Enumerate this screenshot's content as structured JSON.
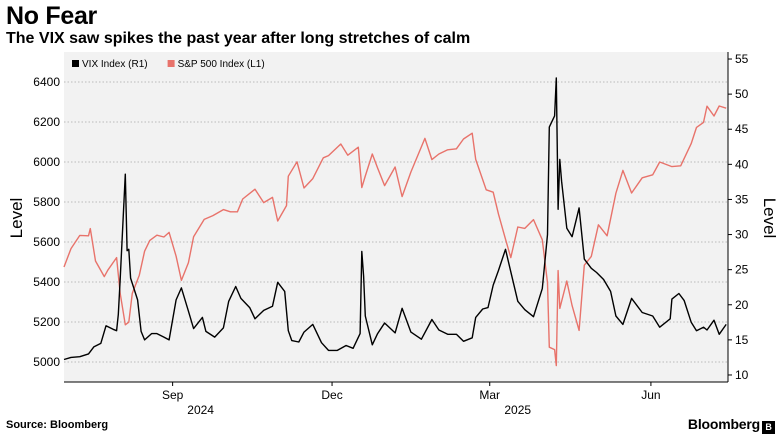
{
  "header": {
    "title": "No Fear",
    "subtitle": "The VIX saw spikes the past year after long stretches of calm"
  },
  "footer": {
    "source": "Source: Bloomberg",
    "brand": "Bloomberg"
  },
  "colors": {
    "vix": "#000000",
    "spx": "#e8736b",
    "grid": "#bbbbbb",
    "plot_bg": "#f2f2f2"
  },
  "chart_data": {
    "type": "line",
    "title": "No Fear",
    "subtitle": "The VIX saw spikes the past year after long stretches of calm",
    "left_axis": {
      "label": "Level",
      "range": [
        4900,
        6550
      ],
      "ticks": [
        5000,
        5200,
        5400,
        5600,
        5800,
        6000,
        6200,
        6400
      ]
    },
    "right_axis": {
      "label": "Level",
      "range": [
        9,
        56
      ],
      "ticks": [
        10,
        15,
        20,
        25,
        30,
        35,
        40,
        45,
        50,
        55
      ]
    },
    "x_axis": {
      "range": [
        "2024-07-01",
        "2025-07-15"
      ],
      "ticks": [
        {
          "date": "2024-09-01",
          "label": "Sep",
          "year": "2024"
        },
        {
          "date": "2024-12-01",
          "label": "Dec",
          "year": ""
        },
        {
          "date": "2025-03-01",
          "label": "Mar",
          "year": "2025"
        },
        {
          "date": "2025-06-01",
          "label": "Jun",
          "year": ""
        }
      ]
    },
    "grid": true,
    "legend_position": "top-left",
    "series": [
      {
        "name": "VIX Index (R1)",
        "axis": "right",
        "color": "#000000",
        "points": [
          [
            "2024-07-01",
            12.2
          ],
          [
            "2024-07-05",
            12.5
          ],
          [
            "2024-07-10",
            12.6
          ],
          [
            "2024-07-15",
            13.0
          ],
          [
            "2024-07-18",
            14.0
          ],
          [
            "2024-07-22",
            14.5
          ],
          [
            "2024-07-25",
            17.0
          ],
          [
            "2024-07-29",
            16.5
          ],
          [
            "2024-07-31",
            16.3
          ],
          [
            "2024-08-01",
            18.6
          ],
          [
            "2024-08-02",
            23.4
          ],
          [
            "2024-08-05",
            38.6
          ],
          [
            "2024-08-06",
            27.7
          ],
          [
            "2024-08-07",
            27.9
          ],
          [
            "2024-08-08",
            23.8
          ],
          [
            "2024-08-12",
            20.7
          ],
          [
            "2024-08-14",
            16.2
          ],
          [
            "2024-08-16",
            15.0
          ],
          [
            "2024-08-20",
            15.9
          ],
          [
            "2024-08-23",
            15.9
          ],
          [
            "2024-08-27",
            15.4
          ],
          [
            "2024-08-30",
            15.0
          ],
          [
            "2024-09-03",
            20.7
          ],
          [
            "2024-09-06",
            22.4
          ],
          [
            "2024-09-10",
            19.1
          ],
          [
            "2024-09-13",
            16.6
          ],
          [
            "2024-09-18",
            18.2
          ],
          [
            "2024-09-20",
            16.2
          ],
          [
            "2024-09-25",
            15.4
          ],
          [
            "2024-09-30",
            16.7
          ],
          [
            "2024-10-03",
            20.5
          ],
          [
            "2024-10-07",
            22.6
          ],
          [
            "2024-10-10",
            20.9
          ],
          [
            "2024-10-15",
            19.6
          ],
          [
            "2024-10-18",
            18.0
          ],
          [
            "2024-10-23",
            19.2
          ],
          [
            "2024-10-28",
            19.8
          ],
          [
            "2024-10-31",
            23.2
          ],
          [
            "2024-11-04",
            21.9
          ],
          [
            "2024-11-06",
            16.3
          ],
          [
            "2024-11-08",
            14.9
          ],
          [
            "2024-11-12",
            14.7
          ],
          [
            "2024-11-15",
            16.1
          ],
          [
            "2024-11-20",
            17.2
          ],
          [
            "2024-11-25",
            14.6
          ],
          [
            "2024-11-29",
            13.5
          ],
          [
            "2024-12-04",
            13.5
          ],
          [
            "2024-12-09",
            14.2
          ],
          [
            "2024-12-13",
            13.8
          ],
          [
            "2024-12-17",
            15.9
          ],
          [
            "2024-12-18",
            27.6
          ],
          [
            "2024-12-19",
            24.1
          ],
          [
            "2024-12-20",
            18.4
          ],
          [
            "2024-12-24",
            14.3
          ],
          [
            "2024-12-27",
            15.9
          ],
          [
            "2024-12-31",
            17.4
          ],
          [
            "2025-01-06",
            16.0
          ],
          [
            "2025-01-10",
            19.5
          ],
          [
            "2025-01-15",
            16.1
          ],
          [
            "2025-01-21",
            15.1
          ],
          [
            "2025-01-27",
            17.9
          ],
          [
            "2025-01-31",
            16.4
          ],
          [
            "2025-02-05",
            15.8
          ],
          [
            "2025-02-10",
            15.8
          ],
          [
            "2025-02-14",
            14.8
          ],
          [
            "2025-02-19",
            15.3
          ],
          [
            "2025-02-21",
            18.2
          ],
          [
            "2025-02-25",
            19.4
          ],
          [
            "2025-02-28",
            19.6
          ],
          [
            "2025-03-03",
            22.8
          ],
          [
            "2025-03-06",
            24.9
          ],
          [
            "2025-03-10",
            27.9
          ],
          [
            "2025-03-13",
            24.7
          ],
          [
            "2025-03-17",
            20.5
          ],
          [
            "2025-03-21",
            19.3
          ],
          [
            "2025-03-26",
            18.3
          ],
          [
            "2025-03-31",
            22.3
          ],
          [
            "2025-04-03",
            30.0
          ],
          [
            "2025-04-04",
            45.3
          ],
          [
            "2025-04-07",
            46.9
          ],
          [
            "2025-04-08",
            52.3
          ],
          [
            "2025-04-09",
            33.6
          ],
          [
            "2025-04-10",
            40.7
          ],
          [
            "2025-04-11",
            37.6
          ],
          [
            "2025-04-14",
            30.9
          ],
          [
            "2025-04-17",
            29.7
          ],
          [
            "2025-04-21",
            33.8
          ],
          [
            "2025-04-24",
            26.5
          ],
          [
            "2025-04-28",
            25.2
          ],
          [
            "2025-05-01",
            24.6
          ],
          [
            "2025-05-05",
            23.6
          ],
          [
            "2025-05-09",
            21.9
          ],
          [
            "2025-05-12",
            18.4
          ],
          [
            "2025-05-16",
            17.2
          ],
          [
            "2025-05-21",
            20.9
          ],
          [
            "2025-05-27",
            18.9
          ],
          [
            "2025-06-02",
            18.4
          ],
          [
            "2025-06-06",
            16.8
          ],
          [
            "2025-06-12",
            18.0
          ],
          [
            "2025-06-13",
            20.8
          ],
          [
            "2025-06-17",
            21.6
          ],
          [
            "2025-06-20",
            20.6
          ],
          [
            "2025-06-24",
            17.5
          ],
          [
            "2025-06-27",
            16.3
          ],
          [
            "2025-07-01",
            16.8
          ],
          [
            "2025-07-03",
            16.4
          ],
          [
            "2025-07-07",
            17.8
          ],
          [
            "2025-07-10",
            15.8
          ],
          [
            "2025-07-14",
            17.2
          ]
        ]
      },
      {
        "name": "S&P 500 Index (L1)",
        "axis": "left",
        "color": "#e8736b",
        "points": [
          [
            "2024-07-01",
            5475
          ],
          [
            "2024-07-05",
            5567
          ],
          [
            "2024-07-10",
            5633
          ],
          [
            "2024-07-15",
            5631
          ],
          [
            "2024-07-16",
            5667
          ],
          [
            "2024-07-19",
            5505
          ],
          [
            "2024-07-24",
            5427
          ],
          [
            "2024-07-26",
            5459
          ],
          [
            "2024-07-31",
            5522
          ],
          [
            "2024-08-02",
            5346
          ],
          [
            "2024-08-05",
            5186
          ],
          [
            "2024-08-07",
            5199
          ],
          [
            "2024-08-09",
            5344
          ],
          [
            "2024-08-13",
            5434
          ],
          [
            "2024-08-16",
            5554
          ],
          [
            "2024-08-19",
            5608
          ],
          [
            "2024-08-23",
            5634
          ],
          [
            "2024-08-27",
            5625
          ],
          [
            "2024-08-30",
            5648
          ],
          [
            "2024-09-03",
            5529
          ],
          [
            "2024-09-06",
            5408
          ],
          [
            "2024-09-10",
            5496
          ],
          [
            "2024-09-13",
            5626
          ],
          [
            "2024-09-19",
            5713
          ],
          [
            "2024-09-24",
            5732
          ],
          [
            "2024-09-30",
            5762
          ],
          [
            "2024-10-04",
            5751
          ],
          [
            "2024-10-08",
            5751
          ],
          [
            "2024-10-11",
            5815
          ],
          [
            "2024-10-18",
            5864
          ],
          [
            "2024-10-23",
            5797
          ],
          [
            "2024-10-28",
            5823
          ],
          [
            "2024-10-31",
            5705
          ],
          [
            "2024-11-05",
            5782
          ],
          [
            "2024-11-06",
            5929
          ],
          [
            "2024-11-11",
            6001
          ],
          [
            "2024-11-15",
            5870
          ],
          [
            "2024-11-20",
            5917
          ],
          [
            "2024-11-26",
            6021
          ],
          [
            "2024-11-29",
            6032
          ],
          [
            "2024-12-06",
            6090
          ],
          [
            "2024-12-10",
            6034
          ],
          [
            "2024-12-16",
            6074
          ],
          [
            "2024-12-18",
            5872
          ],
          [
            "2024-12-20",
            5930
          ],
          [
            "2024-12-24",
            6040
          ],
          [
            "2024-12-27",
            5970
          ],
          [
            "2024-12-31",
            5882
          ],
          [
            "2025-01-06",
            5975
          ],
          [
            "2025-01-10",
            5827
          ],
          [
            "2025-01-15",
            5950
          ],
          [
            "2025-01-23",
            6118
          ],
          [
            "2025-01-27",
            6012
          ],
          [
            "2025-01-31",
            6040
          ],
          [
            "2025-02-05",
            6061
          ],
          [
            "2025-02-10",
            6066
          ],
          [
            "2025-02-14",
            6115
          ],
          [
            "2025-02-19",
            6144
          ],
          [
            "2025-02-21",
            6013
          ],
          [
            "2025-02-27",
            5861
          ],
          [
            "2025-03-03",
            5849
          ],
          [
            "2025-03-06",
            5739
          ],
          [
            "2025-03-10",
            5614
          ],
          [
            "2025-03-13",
            5522
          ],
          [
            "2025-03-17",
            5675
          ],
          [
            "2025-03-21",
            5668
          ],
          [
            "2025-03-26",
            5712
          ],
          [
            "2025-03-31",
            5611
          ],
          [
            "2025-04-03",
            5396
          ],
          [
            "2025-04-04",
            5074
          ],
          [
            "2025-04-07",
            5062
          ],
          [
            "2025-04-08",
            4982
          ],
          [
            "2025-04-09",
            5457
          ],
          [
            "2025-04-10",
            5268
          ],
          [
            "2025-04-14",
            5405
          ],
          [
            "2025-04-17",
            5282
          ],
          [
            "2025-04-21",
            5158
          ],
          [
            "2025-04-24",
            5484
          ],
          [
            "2025-04-28",
            5528
          ],
          [
            "2025-05-02",
            5686
          ],
          [
            "2025-05-07",
            5631
          ],
          [
            "2025-05-12",
            5844
          ],
          [
            "2025-05-16",
            5958
          ],
          [
            "2025-05-21",
            5845
          ],
          [
            "2025-05-27",
            5921
          ],
          [
            "2025-06-02",
            5936
          ],
          [
            "2025-06-06",
            6000
          ],
          [
            "2025-06-13",
            5977
          ],
          [
            "2025-06-18",
            5981
          ],
          [
            "2025-06-24",
            6092
          ],
          [
            "2025-06-27",
            6173
          ],
          [
            "2025-07-01",
            6198
          ],
          [
            "2025-07-03",
            6279
          ],
          [
            "2025-07-07",
            6230
          ],
          [
            "2025-07-10",
            6280
          ],
          [
            "2025-07-14",
            6269
          ]
        ]
      }
    ]
  }
}
